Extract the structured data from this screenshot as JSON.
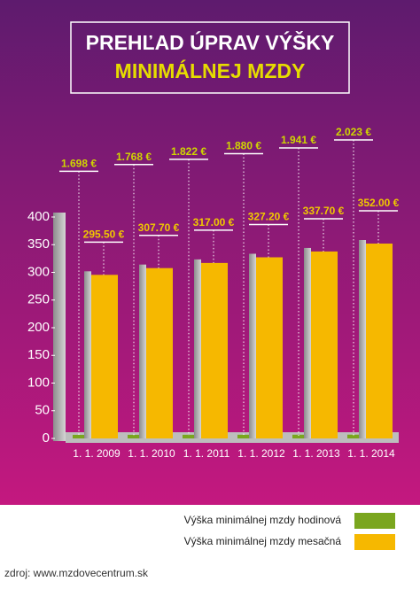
{
  "chart_data": {
    "type": "bar",
    "title": "PREHĽAD ÚPRAV VÝŠKY",
    "subtitle": "MINIMÁLNEJ MZDY",
    "categories": [
      "1. 1. 2009",
      "1. 1. 2010",
      "1. 1. 2011",
      "1. 1. 2012",
      "1. 1. 2013",
      "1. 1. 2014"
    ],
    "series": [
      {
        "name": "Výška minimálnej mzdy hodinová",
        "color": "#7aa61e",
        "values": [
          1.698,
          1.768,
          1.822,
          1.88,
          1.941,
          2.023
        ],
        "value_labels": [
          "1.698 €",
          "1.768 €",
          "1.822 €",
          "1.880 €",
          "1.941 €",
          "2.023 €"
        ]
      },
      {
        "name": "Výška minimálnej mzdy mesačná",
        "color": "#f6b800",
        "values": [
          295.5,
          307.7,
          317.0,
          327.2,
          337.7,
          352.0
        ],
        "value_labels": [
          "295.50 €",
          "307.70 €",
          "317.00 €",
          "327.20 €",
          "337.70 €",
          "352.00 €"
        ]
      }
    ],
    "ylim": [
      0,
      400
    ],
    "yticks": [
      0,
      50,
      100,
      150,
      200,
      250,
      300,
      350,
      400
    ],
    "source": "zdroj:  www.mzdovecentrum.sk"
  }
}
